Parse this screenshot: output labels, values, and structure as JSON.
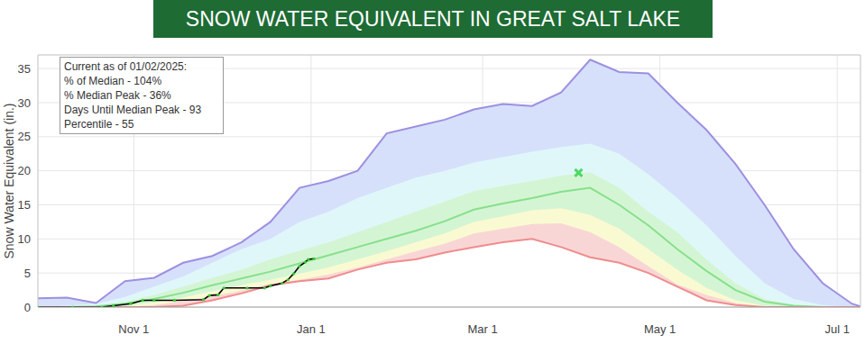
{
  "chart_data": {
    "type": "area",
    "title": "SNOW WATER EQUIVALENT IN GREAT SALT LAKE",
    "ylabel": "Snow Water Equivalent (in.)",
    "annotations": [
      "Current as of 01/02/2025:",
      "% of Median - 104%",
      "% Median Peak - 36%",
      "Days Until Median Peak - 93",
      "Percentile - 55"
    ],
    "x": [
      -2,
      8,
      18,
      28,
      38,
      48,
      58,
      68,
      78,
      88,
      98,
      108,
      118,
      128,
      138,
      148,
      158,
      168,
      178,
      188,
      198,
      208,
      218,
      228,
      238,
      248,
      258,
      268,
      278,
      281
    ],
    "xlim": [
      -2,
      281
    ],
    "xticks": [
      {
        "value": 31,
        "label": "Nov 1"
      },
      {
        "value": 92,
        "label": "Jan 1"
      },
      {
        "value": 151,
        "label": "Mar 1"
      },
      {
        "value": 212,
        "label": "May 1"
      },
      {
        "value": 273,
        "label": "Jul 1"
      }
    ],
    "ylim": [
      0,
      37
    ],
    "yticks": [
      0,
      5,
      10,
      15,
      20,
      25,
      30,
      35
    ],
    "grid": true,
    "series": [
      {
        "color": "#d6e0fb",
        "values": [
          1.3,
          1.4,
          0.6,
          3.8,
          4.3,
          6.5,
          7.5,
          9.5,
          12.5,
          17.5,
          18.5,
          20,
          25.5,
          26.5,
          27.5,
          29,
          29.8,
          29.5,
          31.5,
          36.3,
          34.5,
          34.3,
          30,
          26,
          21,
          15,
          8.5,
          3.5,
          0.5,
          0.1
        ]
      },
      {
        "color": "#e0f7fa",
        "values": [
          0,
          0.2,
          0.5,
          1.5,
          3,
          4.5,
          6.5,
          8.5,
          10,
          12.5,
          14,
          16,
          17.5,
          19,
          20,
          21.2,
          22,
          22.8,
          23.5,
          24,
          22.5,
          19.5,
          16,
          12,
          7.5,
          3.5,
          1.2,
          0.3,
          0,
          0
        ]
      },
      {
        "color": "#d4f5d4",
        "values": [
          0,
          0,
          0.2,
          0.8,
          1.8,
          3,
          4.3,
          5.5,
          7,
          8.3,
          9.5,
          11,
          12.5,
          14,
          15.5,
          17,
          17.8,
          18.5,
          19.3,
          19.8,
          17.5,
          14,
          11,
          7,
          3.5,
          1.2,
          0.3,
          0,
          0,
          0
        ]
      },
      {
        "color": "#fafad2",
        "values": [
          0,
          0,
          0,
          0.2,
          0.7,
          1.4,
          2.3,
          3.2,
          4,
          4.9,
          5.8,
          7,
          8.2,
          9.5,
          10.8,
          12.5,
          13.3,
          14.2,
          14.5,
          13.5,
          11.5,
          8.5,
          5.5,
          2.8,
          1,
          0.2,
          0,
          0,
          0,
          0
        ]
      },
      {
        "color": "#f9d6d6",
        "values": [
          0,
          0,
          0,
          0,
          0.3,
          0.9,
          1.6,
          2.4,
          3.4,
          4,
          4.8,
          5.8,
          7,
          8.2,
          9.3,
          10.8,
          11.5,
          12.2,
          12.3,
          11,
          8.8,
          6,
          3.3,
          1.8,
          0.6,
          0,
          0,
          0,
          0,
          0
        ]
      },
      {
        "color": "#ffffff",
        "values": [
          0,
          0,
          0,
          0,
          0,
          0.2,
          1,
          2,
          3.2,
          3.8,
          4.2,
          5.5,
          6.5,
          7,
          8,
          8.8,
          9.5,
          10,
          8.8,
          7.3,
          6.5,
          5,
          3,
          1,
          0.3,
          0,
          0,
          0,
          0,
          0
        ]
      },
      {
        "type": "line",
        "color": "#9d90e0",
        "values": [
          1.3,
          1.4,
          0.6,
          3.8,
          4.3,
          6.5,
          7.5,
          9.5,
          12.5,
          17.5,
          18.5,
          20,
          25.5,
          26.5,
          27.5,
          29,
          29.8,
          29.5,
          31.5,
          36.3,
          34.5,
          34.3,
          30,
          26,
          21,
          15,
          8.5,
          3.5,
          0.5,
          0.1
        ]
      },
      {
        "type": "line",
        "color": "#86e08c",
        "values": [
          0,
          0,
          0.1,
          0.5,
          1.2,
          2.1,
          3.2,
          4.2,
          5.2,
          6.4,
          7.6,
          8.8,
          10,
          11.2,
          12.6,
          14.3,
          15.2,
          16,
          16.9,
          17.5,
          15,
          12,
          8.5,
          5.3,
          2.5,
          0.8,
          0.2,
          0,
          0,
          0
        ]
      },
      {
        "type": "line",
        "color": "#f08c8c",
        "values": [
          0,
          0,
          0,
          0,
          0,
          0.2,
          1,
          2,
          3.2,
          3.8,
          4.2,
          5.5,
          6.5,
          7,
          8,
          8.8,
          9.5,
          10,
          8.8,
          7.3,
          6.5,
          5,
          3,
          1,
          0.3,
          0,
          0,
          0,
          0,
          0
        ]
      },
      {
        "type": "line",
        "color": "#000000",
        "marker": "circle",
        "x": [
          -2,
          10,
          20,
          24,
          30,
          34,
          38,
          45,
          55,
          57,
          60,
          62,
          70,
          76,
          78,
          82,
          84,
          86,
          88,
          90,
          91,
          93
        ],
        "values": [
          0,
          0,
          0,
          0.2,
          0.5,
          1,
          1,
          1,
          1.1,
          1.7,
          1.8,
          2.8,
          2.8,
          2.8,
          3.1,
          3.5,
          4,
          4.9,
          6,
          6.6,
          7,
          7.1
        ]
      },
      {
        "type": "scatter",
        "color": "#4cd964",
        "marker": "x",
        "x": [
          184
        ],
        "values": [
          19.7
        ]
      }
    ]
  }
}
